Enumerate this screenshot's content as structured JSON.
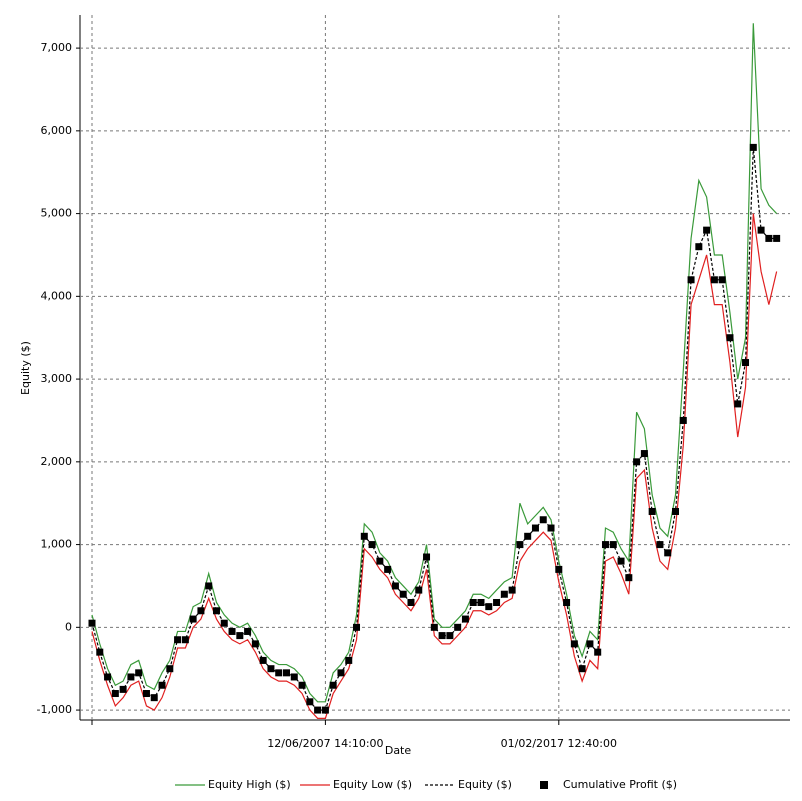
{
  "chart_data": {
    "type": "line",
    "x_label": "Date",
    "y_label": "Equity ($)",
    "categories": [
      null,
      null,
      null,
      null,
      null,
      null,
      null,
      null,
      null,
      null,
      null,
      null,
      null,
      null,
      null,
      null,
      null,
      null,
      null,
      null,
      null,
      null,
      null,
      null,
      null,
      null,
      null,
      null,
      null,
      null,
      "12/06/2007 14:10:00",
      null,
      null,
      null,
      null,
      null,
      null,
      null,
      null,
      null,
      null,
      null,
      null,
      null,
      null,
      null,
      null,
      null,
      null,
      null,
      null,
      null,
      null,
      null,
      null,
      null,
      null,
      null,
      null,
      null,
      "01/02/2017 12:40:00",
      null,
      null,
      null,
      null,
      null,
      null,
      null,
      null,
      null,
      null,
      null,
      null,
      null,
      null,
      null,
      null,
      null,
      null,
      null,
      null,
      null,
      null,
      null,
      null,
      null,
      null,
      null,
      null
    ],
    "series": [
      {
        "name": "Equity High ($)",
        "color": "#3a9a3a",
        "style": "line",
        "values": [
          150,
          -200,
          -500,
          -700,
          -650,
          -450,
          -400,
          -700,
          -750,
          -550,
          -400,
          -50,
          -50,
          250,
          300,
          650,
          300,
          150,
          50,
          0,
          50,
          -100,
          -300,
          -400,
          -450,
          -450,
          -500,
          -600,
          -800,
          -900,
          -900,
          -550,
          -450,
          -300,
          150,
          1250,
          1150,
          900,
          800,
          600,
          500,
          400,
          550,
          1000,
          100,
          0,
          0,
          100,
          200,
          400,
          400,
          350,
          450,
          550,
          600,
          1500,
          1250,
          1350,
          1450,
          1300,
          800,
          400,
          -100,
          -350,
          -50,
          -150,
          1200,
          1150,
          950,
          800,
          2600,
          2400,
          1600,
          1200,
          1100,
          1600,
          3100,
          4700,
          5400,
          5200,
          4500,
          4500,
          3800,
          3000,
          3500,
          7300,
          5300,
          5100,
          5000
        ]
      },
      {
        "name": "Equity Low ($)",
        "color": "#e02020",
        "style": "line",
        "values": [
          -50,
          -400,
          -700,
          -950,
          -850,
          -700,
          -650,
          -950,
          -1000,
          -850,
          -600,
          -250,
          -250,
          0,
          100,
          350,
          100,
          -50,
          -150,
          -200,
          -150,
          -300,
          -500,
          -600,
          -650,
          -650,
          -700,
          -800,
          -1000,
          -1100,
          -1100,
          -800,
          -650,
          -500,
          -150,
          950,
          850,
          700,
          600,
          400,
          300,
          200,
          350,
          700,
          -100,
          -200,
          -200,
          -100,
          0,
          200,
          200,
          150,
          200,
          300,
          350,
          800,
          950,
          1050,
          1150,
          1050,
          550,
          150,
          -350,
          -650,
          -400,
          -500,
          800,
          850,
          650,
          400,
          1800,
          1900,
          1200,
          800,
          700,
          1200,
          2200,
          3900,
          4200,
          4500,
          3900,
          3900,
          3200,
          2300,
          2900,
          5000,
          4300,
          3900,
          4300
        ]
      },
      {
        "name": "Equity ($)",
        "color": "#000000",
        "style": "dashed",
        "values": [
          50,
          -300,
          -600,
          -800,
          -750,
          -600,
          -550,
          -800,
          -850,
          -700,
          -500,
          -150,
          -150,
          100,
          200,
          500,
          200,
          50,
          -50,
          -100,
          -50,
          -200,
          -400,
          -500,
          -550,
          -550,
          -600,
          -700,
          -900,
          -1000,
          -1000,
          -700,
          -550,
          -400,
          0,
          1100,
          1000,
          800,
          700,
          500,
          400,
          300,
          450,
          850,
          0,
          -100,
          -100,
          0,
          100,
          300,
          300,
          250,
          300,
          400,
          450,
          1000,
          1100,
          1200,
          1300,
          1200,
          700,
          300,
          -200,
          -500,
          -200,
          -300,
          1000,
          1000,
          800,
          600,
          2000,
          2100,
          1400,
          1000,
          900,
          1400,
          2500,
          4200,
          4600,
          4800,
          4200,
          4200,
          3500,
          2700,
          3200,
          5800,
          4800,
          4700,
          4700
        ]
      },
      {
        "name": "Cumulative Profit ($)",
        "color": "#000000",
        "style": "marker",
        "values": [
          50,
          -300,
          -600,
          -800,
          -750,
          -600,
          -550,
          -800,
          -850,
          -700,
          -500,
          -150,
          -150,
          100,
          200,
          500,
          200,
          50,
          -50,
          -100,
          -50,
          -200,
          -400,
          -500,
          -550,
          -550,
          -600,
          -700,
          -900,
          -1000,
          -1000,
          -700,
          -550,
          -400,
          0,
          1100,
          1000,
          800,
          700,
          500,
          400,
          300,
          450,
          850,
          0,
          -100,
          -100,
          0,
          100,
          300,
          300,
          250,
          300,
          400,
          450,
          1000,
          1100,
          1200,
          1300,
          1200,
          700,
          300,
          -200,
          -500,
          -200,
          -300,
          1000,
          1000,
          800,
          600,
          2000,
          2100,
          1400,
          1000,
          900,
          1400,
          2500,
          4200,
          4600,
          4800,
          4200,
          4200,
          3500,
          2700,
          3200,
          5800,
          4800,
          4700,
          4700
        ]
      }
    ],
    "ylim": [
      -1120,
      7400
    ],
    "yticks": [
      {
        "value": -1000,
        "label": "-1,000"
      },
      0,
      {
        "value": 1000,
        "label": "1,000"
      },
      {
        "value": 2000,
        "label": "2,000"
      },
      {
        "value": 3000,
        "label": "3,000"
      },
      {
        "value": 4000,
        "label": "4,000"
      },
      {
        "value": 5000,
        "label": "5,000"
      },
      {
        "value": 6000,
        "label": "6,000"
      },
      {
        "value": 7000,
        "label": "7,000"
      }
    ],
    "grid": true
  }
}
